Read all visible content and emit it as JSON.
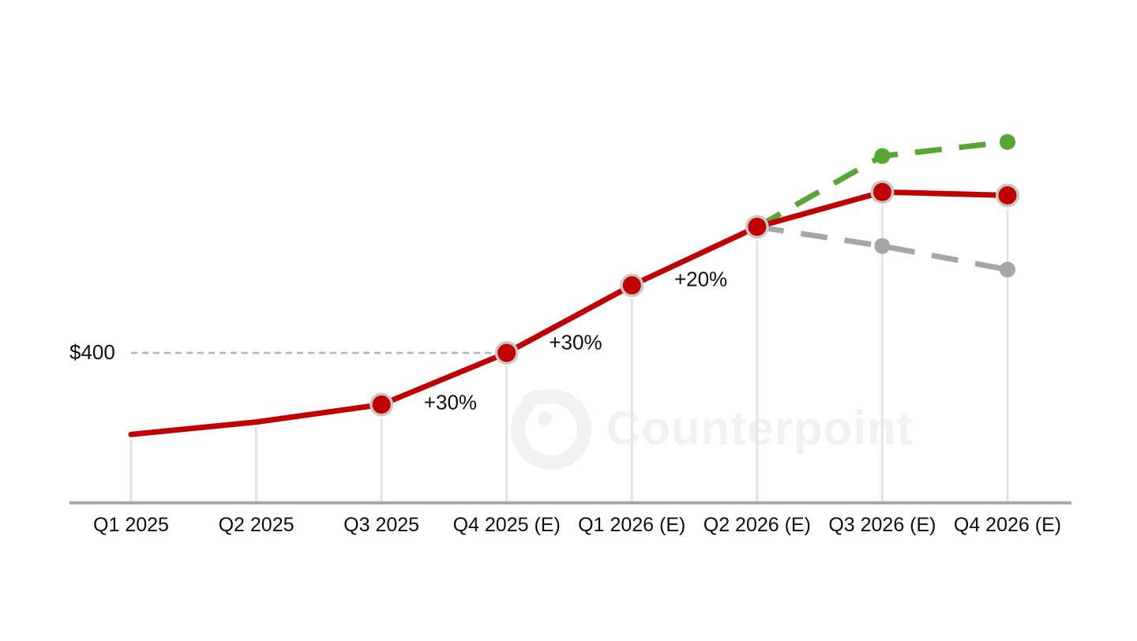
{
  "watermark": {
    "text": "Counterpoint"
  },
  "colors": {
    "red_series": "#c00000",
    "green_series": "#56a632",
    "gray_series": "#a6a6a6",
    "marker_ring": "#c8c8c8",
    "axis_line": "#a9a9a9",
    "drop_line": "#e3e3e3",
    "reference_line": "#b3b3b3",
    "watermark": "#f1f1f1",
    "text": "#0d0d0d"
  },
  "chart_data": {
    "type": "line",
    "categories": [
      "Q1 2025",
      "Q2 2025",
      "Q3 2025",
      "Q4 2025 (E)",
      "Q1 2026 (E)",
      "Q2 2026 (E)",
      "Q3 2026 (E)",
      "Q4 2026 (E)"
    ],
    "series": [
      {
        "name": "red-solid-main",
        "color": "#c00000",
        "line_style": "solid",
        "marker": "ringed-circle",
        "marker_start_index": 2,
        "estimated": true,
        "values": [
          255,
          277,
          308,
          400,
          520,
          624,
          686,
          680
        ]
      },
      {
        "name": "green-dashed-upside",
        "color": "#56a632",
        "line_style": "dashed",
        "marker": "dot",
        "estimated": true,
        "values": [
          null,
          null,
          null,
          null,
          null,
          624,
          750,
          775
        ]
      },
      {
        "name": "gray-dashed-downside",
        "color": "#a6a6a6",
        "line_style": "dashed",
        "marker": "dot",
        "estimated": true,
        "values": [
          null,
          null,
          null,
          null,
          null,
          624,
          590,
          548
        ]
      }
    ],
    "annotations": [
      {
        "text": "+30%",
        "segment_start_index": 2
      },
      {
        "text": "+30%",
        "segment_start_index": 3
      },
      {
        "text": "+20%",
        "segment_start_index": 4
      }
    ],
    "reference_line": {
      "label": "$400",
      "value": 400
    },
    "layout_hints": {
      "grid": "droplines-only",
      "legend": "none",
      "value_axis": "hidden-except-reference"
    }
  }
}
